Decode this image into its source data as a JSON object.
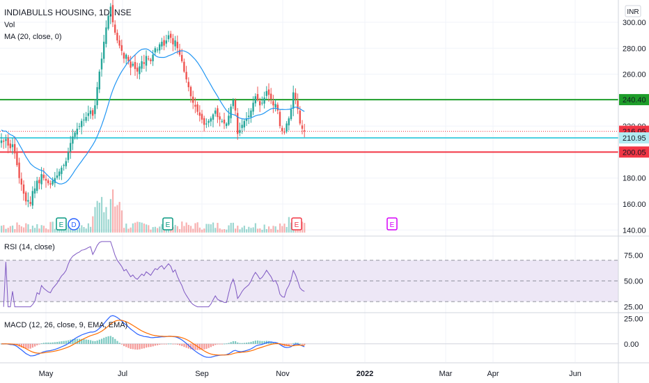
{
  "header": {
    "title": "INDIABULLS HOUSING, 1D, NSE",
    "vol_label": "Vol",
    "ma_label": "MA (20, close, 0)",
    "currency": "INR"
  },
  "colors": {
    "up": "#26a69a",
    "down": "#ef5350",
    "ma": "#2196f3",
    "rsi_line": "#7e57c2",
    "rsi_band": "#ede7f6",
    "macd_line": "#2962ff",
    "signal_line": "#ff6d00",
    "level_green": "#1e9e2a",
    "level_cyan": "#4dd0e1",
    "level_red": "#f23645",
    "last_price_badge": "#f23645",
    "cyan_badge": "#b2ebf2",
    "grid": "#f0f3fa",
    "earnings_green": "#089981",
    "dividend_blue": "#2962ff",
    "earnings_red": "#f23645",
    "earnings_magenta": "#d500f9"
  },
  "chart_data": [
    {
      "pane": "price",
      "type": "candlestick",
      "x_axis_ticks": [
        "May",
        "Jul",
        "Sep",
        "Nov",
        "2022",
        "Mar",
        "Apr",
        "Jun"
      ],
      "y_ticks": [
        "300.00",
        "280.00",
        "260.00",
        "220.00",
        "180.00",
        "160.00",
        "140.00"
      ],
      "ylim": [
        138,
        315
      ],
      "price_labels": [
        {
          "value": 240.4,
          "text": "240.40",
          "role": "level-green"
        },
        {
          "value": 216.05,
          "text": "216.05",
          "role": "last-price"
        },
        {
          "value": 210.95,
          "text": "210.95",
          "role": "level-cyan"
        },
        {
          "value": 200.05,
          "text": "200.05",
          "role": "level-red"
        }
      ],
      "ma_period": 20,
      "events": [
        {
          "label": "E",
          "kind": "earnings",
          "date": "May"
        },
        {
          "label": "D",
          "kind": "dividend",
          "date": "May"
        },
        {
          "label": "E",
          "kind": "earnings",
          "date": "Aug"
        },
        {
          "label": "E",
          "kind": "earnings",
          "date": "Nov"
        },
        {
          "label": "E",
          "kind": "earnings-upcoming",
          "date": "Feb"
        }
      ],
      "closes": [
        209,
        208,
        210,
        205,
        203,
        206,
        199,
        190,
        180,
        175,
        168,
        162,
        163,
        160,
        170,
        172,
        178,
        176,
        183,
        180,
        178,
        176,
        175,
        178,
        180,
        182,
        185,
        188,
        190,
        193,
        200,
        207,
        212,
        215,
        218,
        220,
        224,
        225,
        227,
        230,
        232,
        228,
        236,
        250,
        262,
        272,
        285,
        296,
        305,
        312,
        300,
        292,
        286,
        282,
        278,
        272,
        275,
        270,
        265,
        268,
        264,
        262,
        266,
        270,
        268,
        274,
        272,
        270,
        275,
        280,
        279,
        283,
        285,
        282,
        286,
        290,
        288,
        283,
        286,
        280,
        275,
        270,
        262,
        256,
        250,
        243,
        238,
        235,
        231,
        228,
        225,
        221,
        222,
        224,
        226,
        229,
        232,
        227,
        225,
        224,
        222,
        222,
        228,
        235,
        240,
        232,
        214,
        217,
        221,
        224,
        226,
        228,
        232,
        238,
        243,
        240,
        236,
        238,
        242,
        247,
        244,
        241,
        236,
        237,
        232,
        220,
        216,
        215,
        222,
        226,
        233,
        246,
        241,
        233,
        222,
        218,
        216
      ]
    },
    {
      "pane": "rsi",
      "title": "RSI (14, close)",
      "y_ticks": [
        "75.00",
        "50.00",
        "25.00"
      ],
      "ylim": [
        20,
        92
      ],
      "band": [
        30,
        70
      ],
      "midline": 50
    },
    {
      "pane": "macd",
      "title": "MACD (12, 26, close, 9, EMA, EMA)",
      "y_ticks": [
        "25.00",
        "0.00"
      ],
      "ylim": [
        -18,
        30
      ]
    }
  ]
}
